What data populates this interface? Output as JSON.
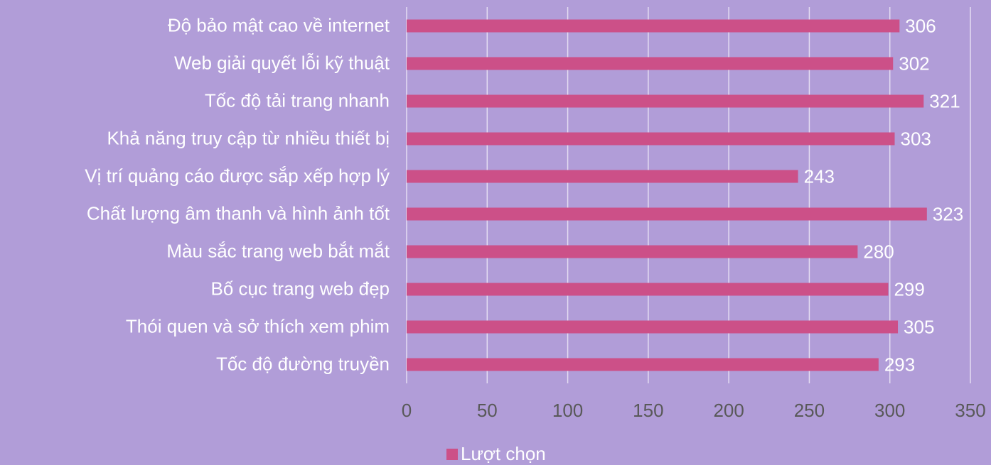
{
  "chart_data": {
    "type": "barh",
    "categories": [
      "Độ bảo mật cao về internet",
      "Web giải quyết lỗi kỹ thuật",
      "Tốc độ tải trang nhanh",
      "Khả năng truy cập từ nhiều thiết bị",
      "Vị trí quảng cáo được sắp xếp hợp lý",
      "Chất lượng âm thanh và hình ảnh tốt",
      "Màu sắc trang web bắt mắt",
      "Bố cục trang web đẹp",
      "Thói quen và sở thích xem phim",
      "Tốc độ đường truyền"
    ],
    "series": [
      {
        "name": "Lượt chọn",
        "color": "#cc5088",
        "values": [
          306,
          302,
          321,
          303,
          243,
          323,
          280,
          299,
          305,
          293
        ]
      }
    ],
    "xlim": [
      0,
      350
    ],
    "xticks": [
      0,
      50,
      100,
      150,
      200,
      250,
      300,
      350
    ],
    "grid": true,
    "legend": "bottom"
  }
}
